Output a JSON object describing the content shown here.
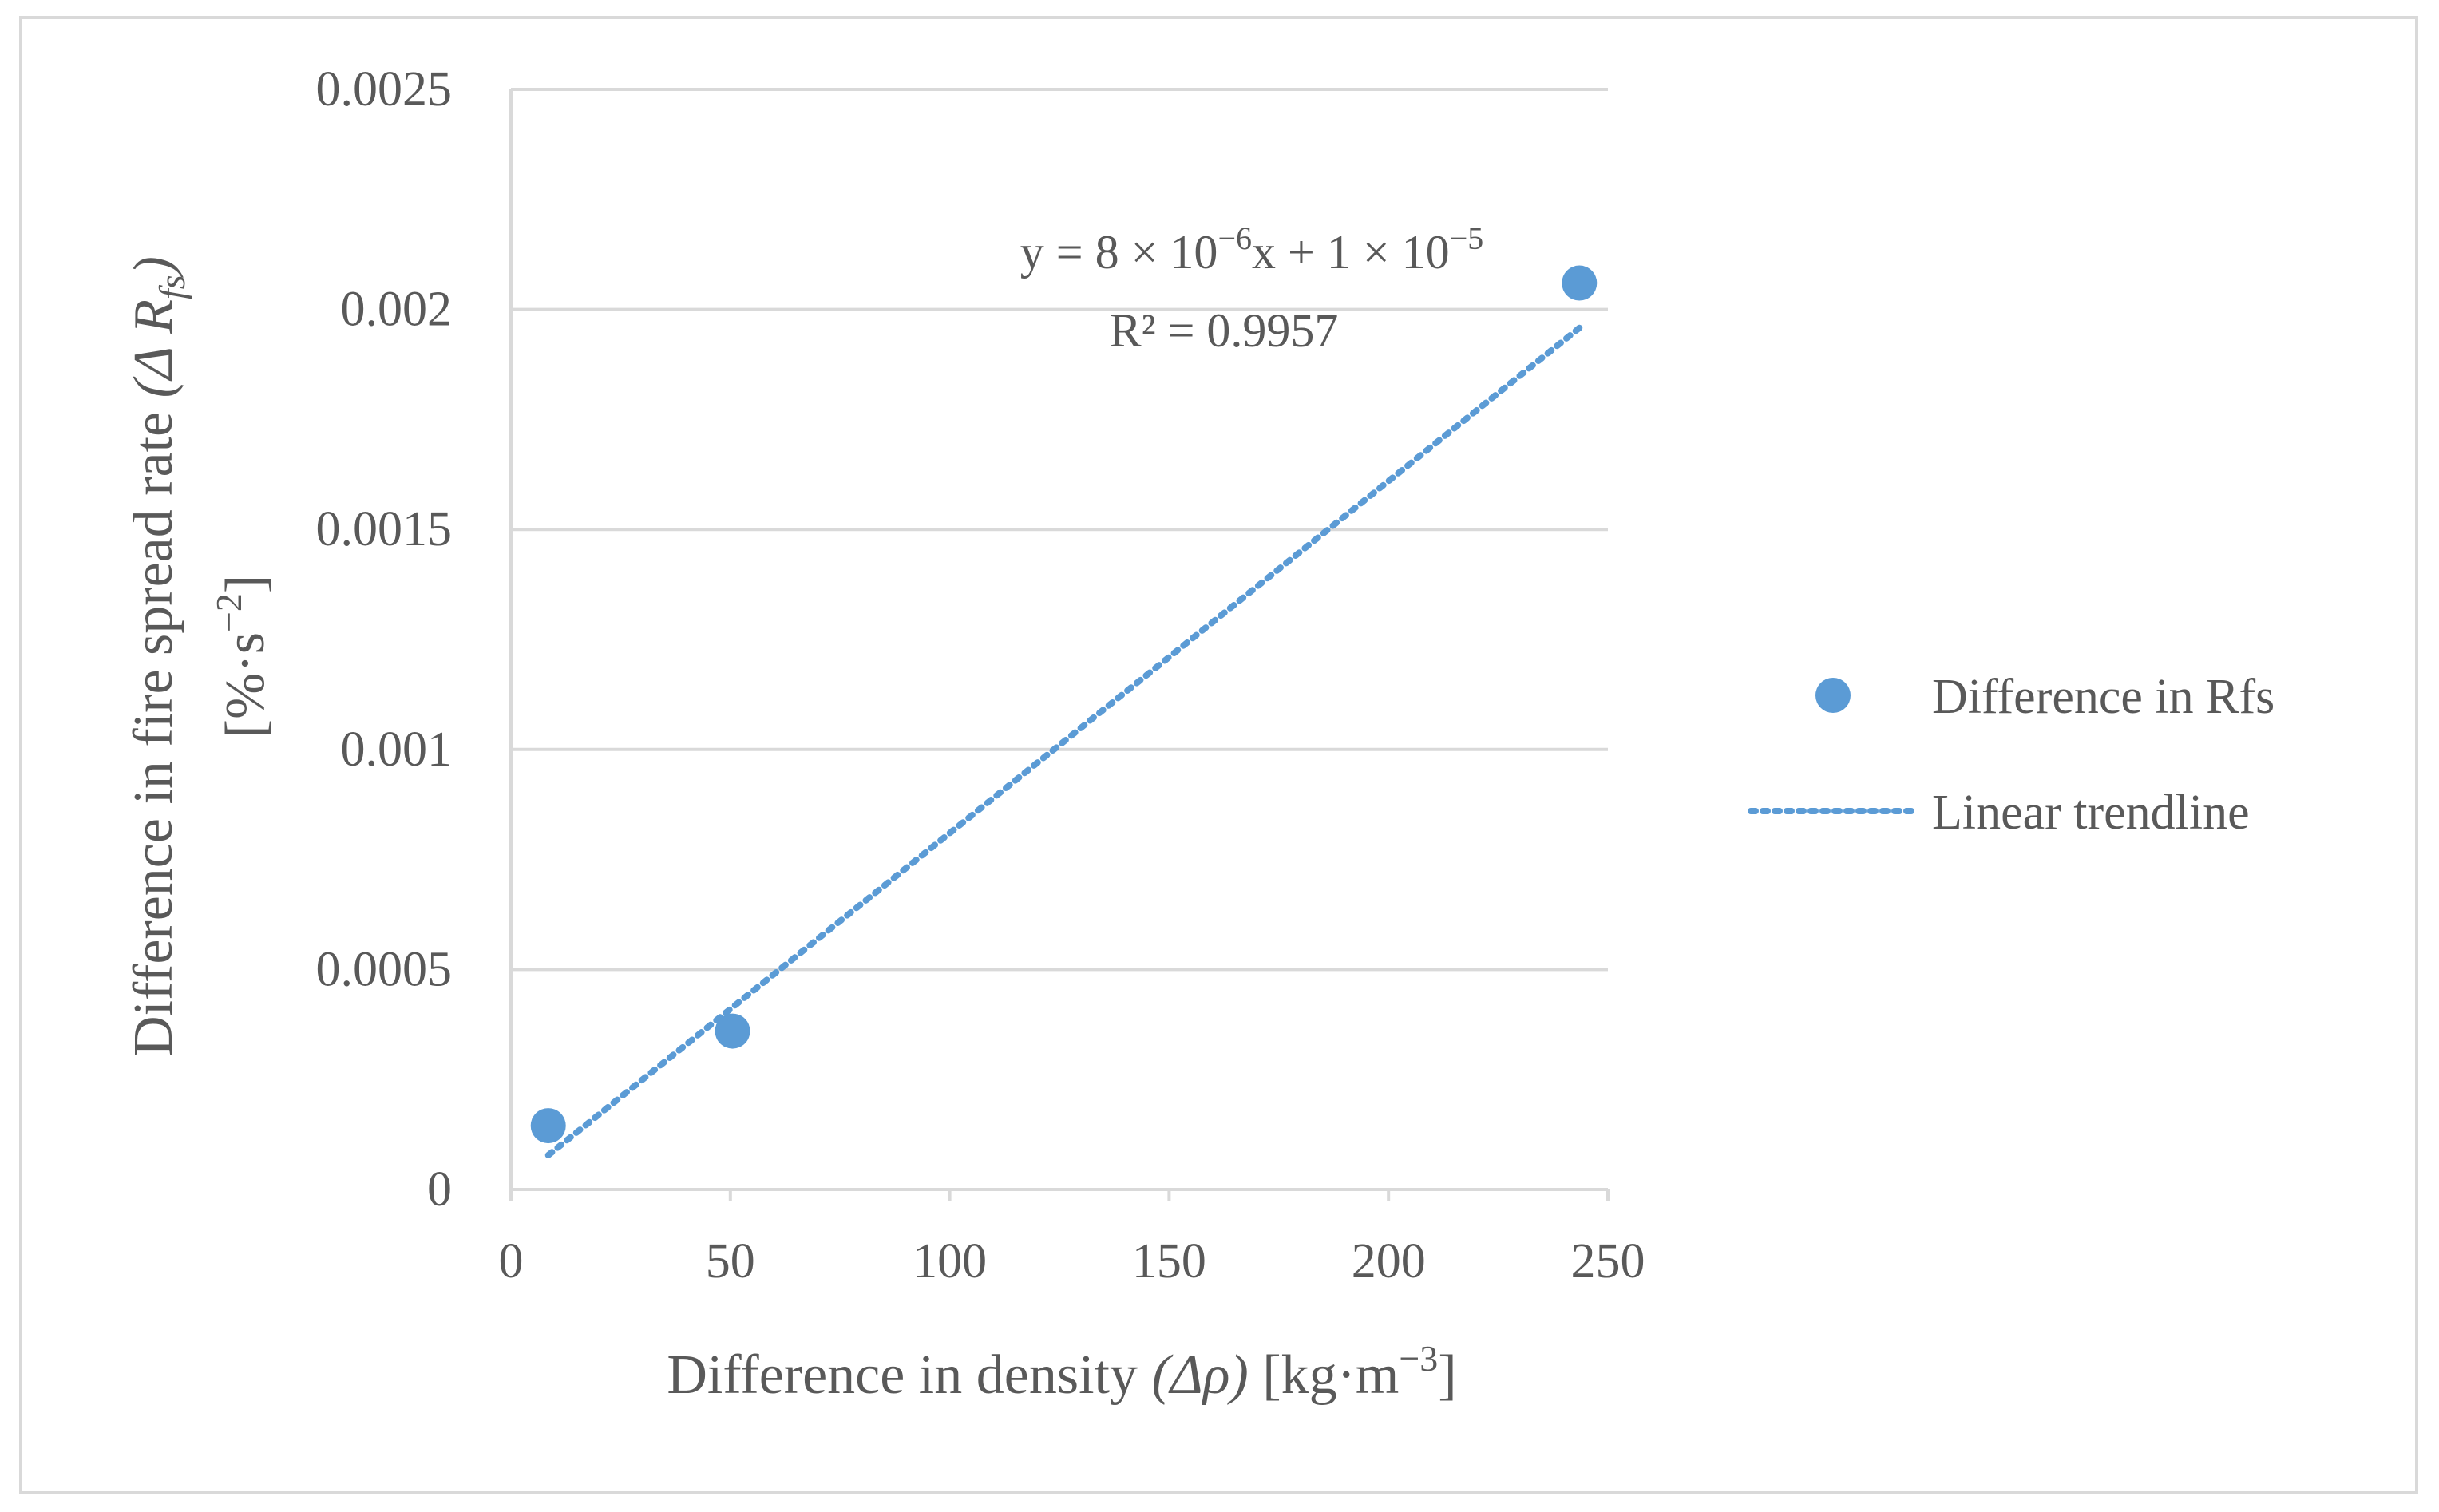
{
  "chart_data": {
    "type": "scatter",
    "title": "",
    "xlabel": {
      "main": "Difference in density ",
      "symbol": "(Δρ)",
      "unit": " [kg·m",
      "unit_exp": "−3",
      "unit_close": "]"
    },
    "ylabel": {
      "line1_main": "Difference in fire spread rate ",
      "line1_symbol": "(Δ R",
      "line1_sub": "fs",
      "line1_close": ")",
      "line2_unit": "[%·s",
      "line2_exp": "−2",
      "line2_close": "]"
    },
    "xlim": [
      0,
      250
    ],
    "ylim": [
      0,
      0.0025
    ],
    "x_ticks": [
      0,
      50,
      100,
      150,
      200,
      250
    ],
    "y_ticks": [
      0,
      0.0005,
      0.001,
      0.0015,
      0.002,
      0.0025
    ],
    "x_tick_labels": [
      "0",
      "50",
      "100",
      "150",
      "200",
      "250"
    ],
    "y_tick_labels": [
      "0",
      "0.0005",
      "0.001",
      "0.0015",
      "0.002",
      "0.0025"
    ],
    "grid": "horizontal",
    "series": [
      {
        "name": "Difference in Rfs",
        "kind": "points",
        "color": "#5b9bd5",
        "x": [
          8.5,
          50.5,
          243.5
        ],
        "y": [
          0.000145,
          0.00036,
          0.00206
        ]
      },
      {
        "name": "Linear trendline",
        "kind": "trendline",
        "color": "#5b9bd5",
        "style": "dotted",
        "slope": 8e-06,
        "intercept": 1e-05,
        "x_range": [
          8.5,
          243.5
        ]
      }
    ],
    "legend": {
      "position": "right",
      "entries": [
        "Difference in Rfs",
        "Linear trendline"
      ]
    },
    "annotation": {
      "equation": {
        "prefix": "y = 8 × 10",
        "exp1": "−6",
        "middle": "x + 1 × 10",
        "exp2": "−5"
      },
      "r_squared": "R² = 0.9957"
    }
  }
}
